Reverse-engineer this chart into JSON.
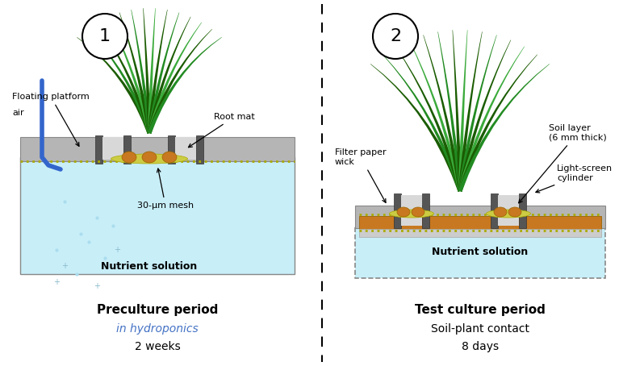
{
  "bg_color": "#ffffff",
  "panel1": {
    "title_bold": "Preculture period",
    "title_italic": "in hydroponics",
    "title_normal": "2 weeks",
    "water_color": "#c8eef8",
    "platform_color": "#b0b0b0",
    "dark_gray": "#555555",
    "root_color": "#c87820",
    "mesh_color": "#c8c840"
  },
  "panel2": {
    "title_bold": "Test culture period",
    "title_normal1": "Soil-plant contact",
    "title_normal2": "8 days",
    "water_color": "#c8eef8",
    "soil_color": "#c87820",
    "orange_rect_color": "#d4820a"
  },
  "grass_dark": "#1a5c00",
  "grass_mid": "#228b22",
  "grass_light": "#3aaa3a",
  "bubble_color": "#aaddee",
  "title_italic_color": "#4472c4",
  "arrow_color": "#000000"
}
